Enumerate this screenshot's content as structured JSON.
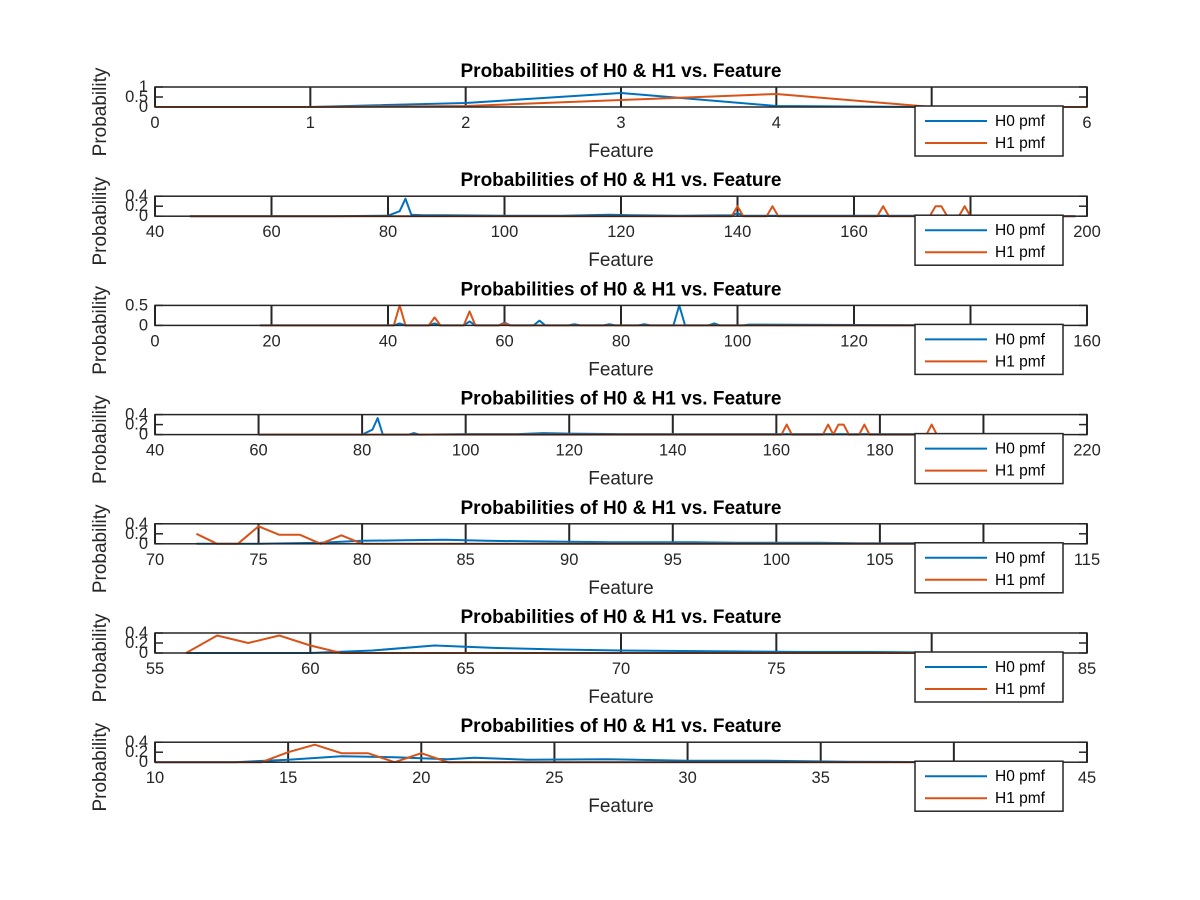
{
  "colors": {
    "h0": "#0072BD",
    "h1": "#D95319",
    "axis": "#262626",
    "background": "#ffffff"
  },
  "chart_data": [
    {
      "type": "line",
      "title": "Probabilities of H0 & H1 vs. Feature",
      "xlabel": "Feature",
      "ylabel": "Probability",
      "xlim": [
        0,
        6
      ],
      "ylim": [
        0,
        1
      ],
      "xticks": [
        0,
        1,
        2,
        3,
        4,
        5,
        6
      ],
      "xtick_labels": [
        "0",
        "1",
        "2",
        "3",
        "4",
        "",
        "6"
      ],
      "yticks": [
        0,
        0.5,
        1
      ],
      "ytick_labels": [
        "0",
        "0.5",
        "1"
      ],
      "grid": false,
      "legend": [
        "H0 pmf",
        "H1 pmf"
      ],
      "legend_location": "southeast",
      "series": [
        {
          "name": "H0 pmf",
          "x": [
            0,
            1,
            2,
            3,
            4,
            5,
            6
          ],
          "y": [
            0,
            0,
            0.2,
            0.7,
            0.05,
            0.0,
            0
          ]
        },
        {
          "name": "H1 pmf",
          "x": [
            0,
            1,
            2,
            3,
            4,
            5,
            6
          ],
          "y": [
            0,
            0,
            0.05,
            0.35,
            0.65,
            0.0,
            0
          ]
        }
      ]
    },
    {
      "type": "line",
      "title": "Probabilities of H0 & H1 vs. Feature",
      "xlabel": "Feature",
      "ylabel": "Probability",
      "xlim": [
        40,
        200
      ],
      "ylim": [
        0,
        0.4
      ],
      "xticks": [
        40,
        60,
        80,
        100,
        120,
        140,
        160,
        180,
        200
      ],
      "xtick_labels": [
        "40",
        "60",
        "80",
        "100",
        "120",
        "140",
        "160",
        "",
        "200"
      ],
      "yticks": [
        0,
        0.2,
        0.4
      ],
      "ytick_labels": [
        "0",
        "0.2",
        "0.4"
      ],
      "grid": false,
      "legend": [
        "H0 pmf",
        "H1 pmf"
      ],
      "legend_location": "southeast",
      "series": [
        {
          "name": "H0 pmf",
          "x": [
            46,
            70,
            80,
            82,
            83,
            84,
            86,
            90,
            100,
            110,
            118,
            122,
            130,
            139,
            140,
            141,
            150,
            160,
            170,
            180,
            190,
            198
          ],
          "y": [
            0,
            0,
            0.01,
            0.1,
            0.35,
            0.03,
            0.02,
            0.02,
            0.01,
            0.01,
            0.03,
            0.02,
            0.01,
            0.02,
            0.06,
            0.01,
            0.01,
            0.01,
            0.01,
            0.01,
            0.01,
            0
          ]
        },
        {
          "name": "H1 pmf",
          "x": [
            46,
            139,
            140,
            141,
            145,
            146,
            147,
            164,
            165,
            166,
            173,
            174,
            175,
            176,
            178,
            179,
            180,
            198
          ],
          "y": [
            0,
            0,
            0.2,
            0,
            0,
            0.2,
            0,
            0,
            0.2,
            0,
            0,
            0.2,
            0.2,
            0,
            0,
            0.2,
            0,
            0
          ]
        }
      ]
    },
    {
      "type": "line",
      "title": "Probabilities of H0 & H1 vs. Feature",
      "xlabel": "Feature",
      "ylabel": "Probability",
      "xlim": [
        0,
        160
      ],
      "ylim": [
        0,
        0.5
      ],
      "xticks": [
        0,
        20,
        40,
        60,
        80,
        100,
        120,
        140,
        160
      ],
      "xtick_labels": [
        "0",
        "20",
        "40",
        "60",
        "80",
        "100",
        "120",
        "",
        "160"
      ],
      "yticks": [
        0,
        0.5
      ],
      "ytick_labels": [
        "0",
        "0.5"
      ],
      "grid": false,
      "legend": [
        "H0 pmf",
        "H1 pmf"
      ],
      "legend_location": "southeast",
      "series": [
        {
          "name": "H0 pmf",
          "x": [
            18,
            41,
            42,
            43,
            47,
            48,
            49,
            53,
            54,
            55,
            59,
            60,
            61,
            65,
            66,
            67,
            71,
            72,
            73,
            77,
            78,
            79,
            83,
            84,
            85,
            89,
            90,
            91,
            95,
            96,
            97,
            101,
            102,
            140
          ],
          "y": [
            0,
            0,
            0.05,
            0,
            0,
            0.05,
            0,
            0,
            0.1,
            0,
            0,
            0.07,
            0,
            0,
            0.12,
            0,
            0,
            0.03,
            0,
            0,
            0.03,
            0,
            0,
            0.03,
            0,
            0,
            0.5,
            0,
            0,
            0.05,
            0,
            0,
            0.02,
            0
          ]
        },
        {
          "name": "H1 pmf",
          "x": [
            18,
            41,
            42,
            43,
            47,
            48,
            49,
            53,
            54,
            55,
            59,
            60,
            61,
            140
          ],
          "y": [
            0,
            0,
            0.5,
            0,
            0,
            0.2,
            0,
            0,
            0.35,
            0,
            0,
            0.05,
            0,
            0
          ]
        }
      ]
    },
    {
      "type": "line",
      "title": "Probabilities of H0 & H1 vs. Feature",
      "xlabel": "Feature",
      "ylabel": "Probability",
      "xlim": [
        40,
        220
      ],
      "ylim": [
        0,
        0.4
      ],
      "xticks": [
        40,
        60,
        80,
        100,
        120,
        140,
        160,
        180,
        200,
        220
      ],
      "xtick_labels": [
        "40",
        "60",
        "80",
        "100",
        "120",
        "140",
        "160",
        "180",
        "",
        "220"
      ],
      "yticks": [
        0,
        0.2,
        0.4
      ],
      "ytick_labels": [
        "0",
        "0.2",
        "0.4"
      ],
      "grid": false,
      "legend": [
        "H0 pmf",
        "H1 pmf"
      ],
      "legend_location": "southeast",
      "series": [
        {
          "name": "H0 pmf",
          "x": [
            60,
            80,
            82,
            83,
            84,
            89,
            90,
            91,
            100,
            110,
            115,
            120,
            130,
            140,
            150,
            160,
            170,
            180,
            190,
            200,
            208
          ],
          "y": [
            0,
            0,
            0.1,
            0.33,
            0,
            0,
            0.03,
            0,
            0.01,
            0.01,
            0.03,
            0.02,
            0.01,
            0.01,
            0.01,
            0.01,
            0.01,
            0.01,
            0.01,
            0.01,
            0
          ]
        },
        {
          "name": "H1 pmf",
          "x": [
            60,
            161,
            162,
            163,
            169,
            170,
            171,
            172,
            173,
            174,
            176,
            177,
            178,
            189,
            190,
            191,
            208
          ],
          "y": [
            0,
            0,
            0.2,
            0,
            0,
            0.2,
            0,
            0.2,
            0.2,
            0,
            0,
            0.2,
            0,
            0,
            0.2,
            0,
            0
          ]
        }
      ]
    },
    {
      "type": "line",
      "title": "Probabilities of H0 & H1 vs. Feature",
      "xlabel": "Feature",
      "ylabel": "Probability",
      "xlim": [
        70,
        115
      ],
      "ylim": [
        0,
        0.4
      ],
      "xticks": [
        70,
        75,
        80,
        85,
        90,
        95,
        100,
        105,
        110,
        115
      ],
      "xtick_labels": [
        "70",
        "75",
        "80",
        "85",
        "90",
        "95",
        "100",
        "105",
        "",
        "115"
      ],
      "yticks": [
        0,
        0.2,
        0.4
      ],
      "ytick_labels": [
        "0",
        "0.2",
        "0.4"
      ],
      "grid": false,
      "legend": [
        "H0 pmf",
        "H1 pmf"
      ],
      "legend_location": "southeast",
      "series": [
        {
          "name": "H0 pmf",
          "x": [
            72,
            75,
            78,
            80,
            82,
            84,
            86,
            88,
            90,
            92,
            94,
            96,
            98,
            100,
            102,
            104,
            106,
            108,
            110,
            112
          ],
          "y": [
            0,
            0,
            0.02,
            0.06,
            0.07,
            0.08,
            0.06,
            0.05,
            0.04,
            0.03,
            0.03,
            0.03,
            0.02,
            0.02,
            0.02,
            0.01,
            0.01,
            0.01,
            0.01,
            0
          ]
        },
        {
          "name": "H1 pmf",
          "x": [
            72,
            73,
            74,
            75,
            76,
            77,
            78,
            79,
            80,
            82,
            90,
            100,
            110
          ],
          "y": [
            0.2,
            0,
            0,
            0.35,
            0.18,
            0.18,
            0,
            0.17,
            0,
            0,
            0,
            0,
            0
          ]
        }
      ]
    },
    {
      "type": "line",
      "title": "Probabilities of H0 & H1 vs. Feature",
      "xlabel": "Feature",
      "ylabel": "Probability",
      "xlim": [
        55,
        85
      ],
      "ylim": [
        0,
        0.4
      ],
      "xticks": [
        55,
        60,
        65,
        70,
        75,
        80,
        85
      ],
      "xtick_labels": [
        "55",
        "60",
        "65",
        "70",
        "75",
        "",
        "85"
      ],
      "yticks": [
        0,
        0.2,
        0.4
      ],
      "ytick_labels": [
        "0",
        "0.2",
        "0.4"
      ],
      "grid": false,
      "legend": [
        "H0 pmf",
        "H1 pmf"
      ],
      "legend_location": "southeast",
      "series": [
        {
          "name": "H0 pmf",
          "x": [
            56,
            58,
            60,
            62,
            64,
            66,
            68,
            70,
            72,
            74,
            76,
            78,
            80,
            82
          ],
          "y": [
            0,
            0,
            0,
            0.05,
            0.15,
            0.1,
            0.07,
            0.05,
            0.04,
            0.03,
            0.02,
            0.02,
            0.01,
            0
          ]
        },
        {
          "name": "H1 pmf",
          "x": [
            56,
            57,
            58,
            59,
            60,
            61,
            62,
            70,
            80
          ],
          "y": [
            0,
            0.35,
            0.2,
            0.35,
            0.15,
            0,
            0,
            0,
            0
          ]
        }
      ]
    },
    {
      "type": "line",
      "title": "Probabilities of H0 & H1 vs. Feature",
      "xlabel": "Feature",
      "ylabel": "Probability",
      "xlim": [
        10,
        45
      ],
      "ylim": [
        0,
        0.4
      ],
      "xticks": [
        10,
        15,
        20,
        25,
        30,
        35,
        40,
        45
      ],
      "xtick_labels": [
        "10",
        "15",
        "20",
        "25",
        "30",
        "35",
        "",
        "45"
      ],
      "yticks": [
        0,
        0.2,
        0.4
      ],
      "ytick_labels": [
        "0",
        "0.2",
        "0.4"
      ],
      "grid": false,
      "legend": [
        "H0 pmf",
        "H1 pmf"
      ],
      "legend_location": "southeast",
      "series": [
        {
          "name": "H0 pmf",
          "x": [
            10,
            13,
            15,
            17,
            19,
            20,
            21,
            22,
            24,
            27,
            30,
            33,
            36,
            40
          ],
          "y": [
            0,
            0,
            0.05,
            0.12,
            0.1,
            0.08,
            0.06,
            0.09,
            0.05,
            0.06,
            0.03,
            0.03,
            0.01,
            0
          ]
        },
        {
          "name": "H1 pmf",
          "x": [
            10,
            14,
            15,
            16,
            17,
            18,
            19,
            20,
            21,
            22,
            30,
            40
          ],
          "y": [
            0,
            0,
            0.2,
            0.35,
            0.18,
            0.18,
            0,
            0.18,
            0,
            0,
            0,
            0
          ]
        }
      ]
    }
  ]
}
